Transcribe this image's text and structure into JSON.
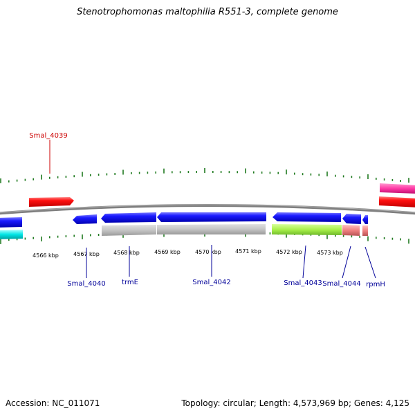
{
  "title": "Stenotrophomonas maltophilia R551-3, complete genome",
  "footer": {
    "accession": "Accession: NC_011071",
    "topology": "Topology: circular; Length: 4,573,969 bp; Genes: 4,125"
  },
  "axis_labels": [
    "4566 kbp",
    "4567 kbp",
    "4568 kbp",
    "4569 kbp",
    "4570 kbp",
    "4571 kbp",
    "4572 kbp",
    "4573 kbp"
  ],
  "colors": {
    "blue": "#0a0adc",
    "red": "#ff0000",
    "label_blue": "#000099",
    "label_red": "#cc0000",
    "gray": "#bdbdbd",
    "lime": "#a8f04a",
    "salmon": "#ef8080",
    "cyan": "#00e5e5",
    "magenta": "#ff3aa6",
    "tick": "#1f7a1f",
    "backbone": "#7f7f7f"
  },
  "gene_labels": {
    "smal_4039": "Smal_4039",
    "smal_4040": "Smal_4040",
    "trme": "trmE",
    "smal_4042": "Smal_4042",
    "smal_4043": "Smal_4043",
    "smal_4044": "Smal_4044",
    "rpmh": "rpmH"
  }
}
